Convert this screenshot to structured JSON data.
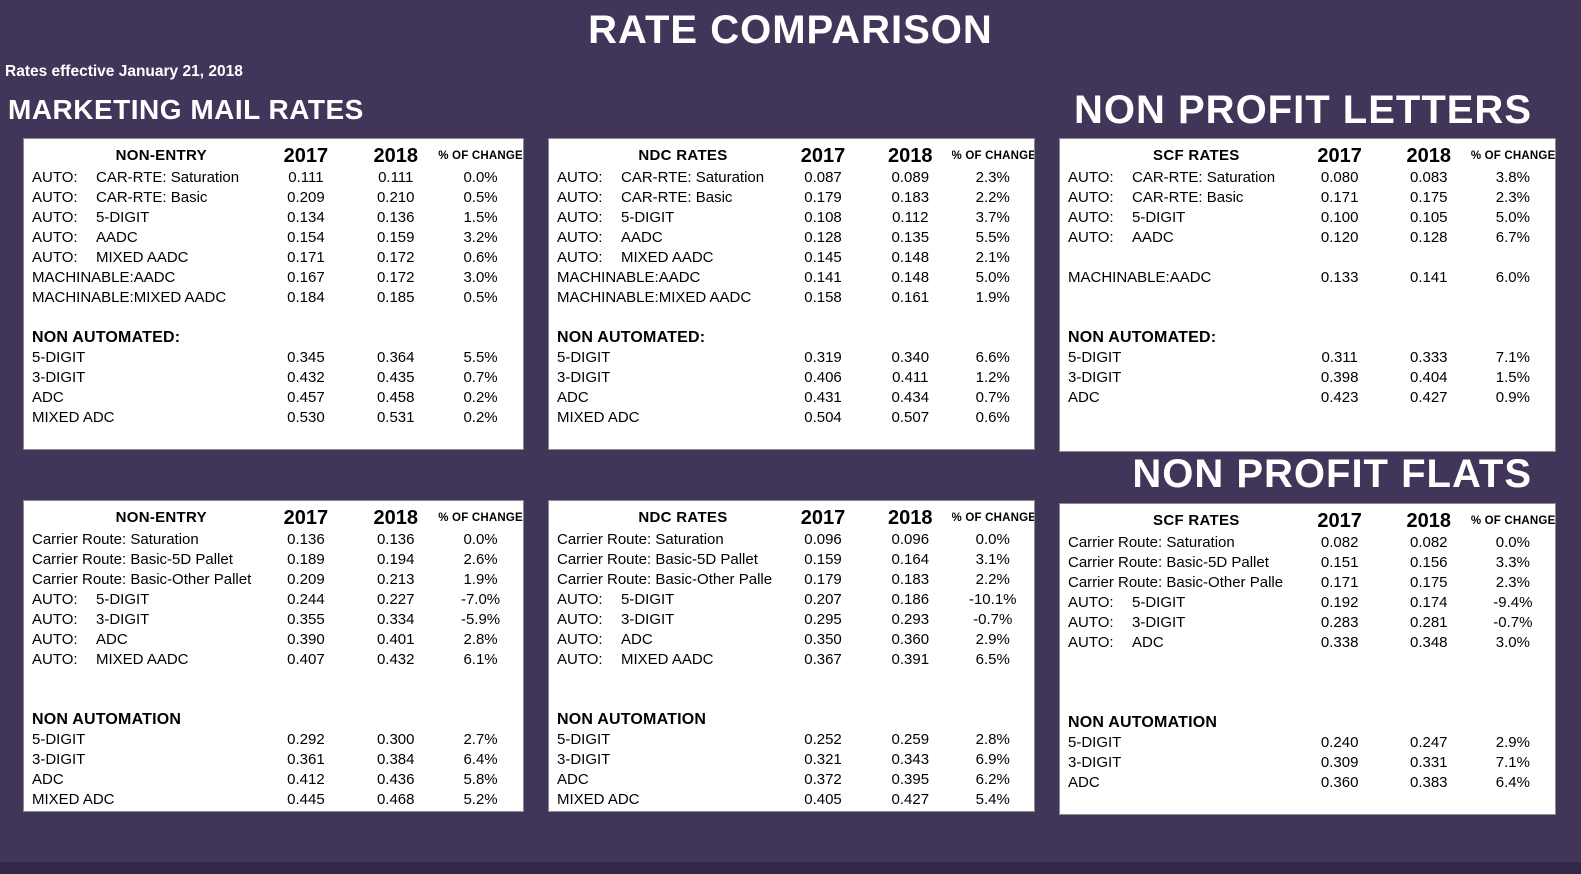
{
  "page": {
    "title": "RATE COMPARISON",
    "effective_date_note": "Rates effective January 21, 2018",
    "background_color": "#41355a",
    "panel_background": "#ffffff"
  },
  "section_headings": {
    "marketing_mail": "MARKETING MAIL RATES",
    "non_profit_letters": "NON PROFIT LETTERS",
    "non_profit_flats": "NON PROFIT FLATS"
  },
  "columns": {
    "c2017": "2017",
    "c2018": "2018",
    "change": "% OF CHANGE"
  },
  "panels": [
    {
      "name": "marketing-mail-letters-non-entry",
      "title": "NON-ENTRY",
      "rows": [
        {
          "prefix": "AUTO:",
          "label": "CAR-RTE: Saturation",
          "y2017": "0.111",
          "y2018": "0.111",
          "change": "0.0%"
        },
        {
          "prefix": "AUTO:",
          "label": "CAR-RTE: Basic",
          "y2017": "0.209",
          "y2018": "0.210",
          "change": "0.5%"
        },
        {
          "prefix": "AUTO:",
          "label": "5-DIGIT",
          "y2017": "0.134",
          "y2018": "0.136",
          "change": "1.5%"
        },
        {
          "prefix": "AUTO:",
          "label": "AADC",
          "y2017": "0.154",
          "y2018": "0.159",
          "change": "3.2%"
        },
        {
          "prefix": "AUTO:",
          "label": "MIXED AADC",
          "y2017": "0.171",
          "y2018": "0.172",
          "change": "0.6%"
        },
        {
          "prefix": "MACHINABLE:",
          "label": "AADC",
          "y2017": "0.167",
          "y2018": "0.172",
          "change": "3.0%"
        },
        {
          "prefix": "MACHINABLE:",
          "label": "MIXED AADC",
          "y2017": "0.184",
          "y2018": "0.185",
          "change": "0.5%"
        },
        {
          "type": "blank"
        },
        {
          "type": "section",
          "label": "NON AUTOMATED:"
        },
        {
          "label": "5-DIGIT",
          "y2017": "0.345",
          "y2018": "0.364",
          "change": "5.5%"
        },
        {
          "label": "3-DIGIT",
          "y2017": "0.432",
          "y2018": "0.435",
          "change": "0.7%"
        },
        {
          "label": "ADC",
          "y2017": "0.457",
          "y2018": "0.458",
          "change": "0.2%"
        },
        {
          "label": "MIXED ADC",
          "y2017": "0.530",
          "y2018": "0.531",
          "change": "0.2%"
        }
      ]
    },
    {
      "name": "marketing-mail-letters-ndc",
      "title": "NDC RATES",
      "rows": [
        {
          "prefix": "AUTO:",
          "label": "CAR-RTE: Saturation",
          "y2017": "0.087",
          "y2018": "0.089",
          "change": "2.3%"
        },
        {
          "prefix": "AUTO:",
          "label": "CAR-RTE: Basic",
          "y2017": "0.179",
          "y2018": "0.183",
          "change": "2.2%"
        },
        {
          "prefix": "AUTO:",
          "label": "5-DIGIT",
          "y2017": "0.108",
          "y2018": "0.112",
          "change": "3.7%"
        },
        {
          "prefix": "AUTO:",
          "label": "AADC",
          "y2017": "0.128",
          "y2018": "0.135",
          "change": "5.5%"
        },
        {
          "prefix": "AUTO:",
          "label": "MIXED AADC",
          "y2017": "0.145",
          "y2018": "0.148",
          "change": "2.1%"
        },
        {
          "prefix": "MACHINABLE:",
          "label": "AADC",
          "y2017": "0.141",
          "y2018": "0.148",
          "change": "5.0%"
        },
        {
          "prefix": "MACHINABLE:",
          "label": "MIXED AADC",
          "y2017": "0.158",
          "y2018": "0.161",
          "change": "1.9%"
        },
        {
          "type": "blank"
        },
        {
          "type": "section",
          "label": "NON AUTOMATED:"
        },
        {
          "label": "5-DIGIT",
          "y2017": "0.319",
          "y2018": "0.340",
          "change": "6.6%"
        },
        {
          "label": "3-DIGIT",
          "y2017": "0.406",
          "y2018": "0.411",
          "change": "1.2%"
        },
        {
          "label": "ADC",
          "y2017": "0.431",
          "y2018": "0.434",
          "change": "0.7%"
        },
        {
          "label": "MIXED ADC",
          "y2017": "0.504",
          "y2018": "0.507",
          "change": "0.6%"
        }
      ]
    },
    {
      "name": "non-profit-letters-scf",
      "title": "SCF RATES",
      "rows": [
        {
          "prefix": "AUTO:",
          "label": "CAR-RTE: Saturation",
          "y2017": "0.080",
          "y2018": "0.083",
          "change": "3.8%"
        },
        {
          "prefix": "AUTO:",
          "label": "CAR-RTE: Basic",
          "y2017": "0.171",
          "y2018": "0.175",
          "change": "2.3%"
        },
        {
          "prefix": "AUTO:",
          "label": "5-DIGIT",
          "y2017": "0.100",
          "y2018": "0.105",
          "change": "5.0%"
        },
        {
          "prefix": "AUTO:",
          "label": "AADC",
          "y2017": "0.120",
          "y2018": "0.128",
          "change": "6.7%"
        },
        {
          "type": "blank"
        },
        {
          "prefix": "MACHINABLE:",
          "label": "AADC",
          "y2017": "0.133",
          "y2018": "0.141",
          "change": "6.0%"
        },
        {
          "type": "blank"
        },
        {
          "type": "blank"
        },
        {
          "type": "section",
          "label": "NON AUTOMATED:"
        },
        {
          "label": "5-DIGIT",
          "y2017": "0.311",
          "y2018": "0.333",
          "change": "7.1%"
        },
        {
          "label": "3-DIGIT",
          "y2017": "0.398",
          "y2018": "0.404",
          "change": "1.5%"
        },
        {
          "label": "ADC",
          "y2017": "0.423",
          "y2018": "0.427",
          "change": "0.9%"
        }
      ]
    },
    {
      "name": "marketing-mail-flats-non-entry",
      "title": "NON-ENTRY",
      "rows": [
        {
          "label": "Carrier Route: Saturation",
          "y2017": "0.136",
          "y2018": "0.136",
          "change": "0.0%"
        },
        {
          "label": "Carrier Route: Basic-5D Pallet",
          "y2017": "0.189",
          "y2018": "0.194",
          "change": "2.6%"
        },
        {
          "label": "Carrier Route: Basic-Other Pallet",
          "y2017": "0.209",
          "y2018": "0.213",
          "change": "1.9%"
        },
        {
          "prefix": "AUTO:",
          "label": "5-DIGIT",
          "y2017": "0.244",
          "y2018": "0.227",
          "change": "-7.0%"
        },
        {
          "prefix": "AUTO:",
          "label": "3-DIGIT",
          "y2017": "0.355",
          "y2018": "0.334",
          "change": "-5.9%"
        },
        {
          "prefix": "AUTO:",
          "label": "ADC",
          "y2017": "0.390",
          "y2018": "0.401",
          "change": "2.8%"
        },
        {
          "prefix": "AUTO:",
          "label": "MIXED AADC",
          "y2017": "0.407",
          "y2018": "0.432",
          "change": "6.1%"
        },
        {
          "type": "blank"
        },
        {
          "type": "blank"
        },
        {
          "type": "section",
          "label": "NON AUTOMATION"
        },
        {
          "label": "5-DIGIT",
          "y2017": "0.292",
          "y2018": "0.300",
          "change": "2.7%"
        },
        {
          "label": "3-DIGIT",
          "y2017": "0.361",
          "y2018": "0.384",
          "change": "6.4%"
        },
        {
          "label": "ADC",
          "y2017": "0.412",
          "y2018": "0.436",
          "change": "5.8%"
        },
        {
          "label": "MIXED ADC",
          "y2017": "0.445",
          "y2018": "0.468",
          "change": "5.2%"
        }
      ]
    },
    {
      "name": "marketing-mail-flats-ndc",
      "title": "NDC RATES",
      "rows": [
        {
          "label": "Carrier Route: Saturation",
          "y2017": "0.096",
          "y2018": "0.096",
          "change": "0.0%"
        },
        {
          "label": "Carrier Route: Basic-5D Pallet",
          "y2017": "0.159",
          "y2018": "0.164",
          "change": "3.1%"
        },
        {
          "label": "Carrier Route: Basic-Other Palle",
          "y2017": "0.179",
          "y2018": "0.183",
          "change": "2.2%"
        },
        {
          "prefix": "AUTO:",
          "label": "5-DIGIT",
          "y2017": "0.207",
          "y2018": "0.186",
          "change": "-10.1%"
        },
        {
          "prefix": "AUTO:",
          "label": "3-DIGIT",
          "y2017": "0.295",
          "y2018": "0.293",
          "change": "-0.7%"
        },
        {
          "prefix": "AUTO:",
          "label": "ADC",
          "y2017": "0.350",
          "y2018": "0.360",
          "change": "2.9%"
        },
        {
          "prefix": "AUTO:",
          "label": "MIXED AADC",
          "y2017": "0.367",
          "y2018": "0.391",
          "change": "6.5%"
        },
        {
          "type": "blank"
        },
        {
          "type": "blank"
        },
        {
          "type": "section",
          "label": "NON AUTOMATION"
        },
        {
          "label": "5-DIGIT",
          "y2017": "0.252",
          "y2018": "0.259",
          "change": "2.8%"
        },
        {
          "label": "3-DIGIT",
          "y2017": "0.321",
          "y2018": "0.343",
          "change": "6.9%"
        },
        {
          "label": "ADC",
          "y2017": "0.372",
          "y2018": "0.395",
          "change": "6.2%"
        },
        {
          "label": "MIXED ADC",
          "y2017": "0.405",
          "y2018": "0.427",
          "change": "5.4%"
        }
      ]
    },
    {
      "name": "non-profit-flats-scf",
      "title": "SCF RATES",
      "rows": [
        {
          "label": "Carrier Route: Saturation",
          "y2017": "0.082",
          "y2018": "0.082",
          "change": "0.0%"
        },
        {
          "label": "Carrier Route: Basic-5D Pallet",
          "y2017": "0.151",
          "y2018": "0.156",
          "change": "3.3%"
        },
        {
          "label": "Carrier Route: Basic-Other Palle",
          "y2017": "0.171",
          "y2018": "0.175",
          "change": "2.3%"
        },
        {
          "prefix": "AUTO:",
          "label": "5-DIGIT",
          "y2017": "0.192",
          "y2018": "0.174",
          "change": "-9.4%"
        },
        {
          "prefix": "AUTO:",
          "label": "3-DIGIT",
          "y2017": "0.283",
          "y2018": "0.281",
          "change": "-0.7%"
        },
        {
          "prefix": "AUTO:",
          "label": "ADC",
          "y2017": "0.338",
          "y2018": "0.348",
          "change": "3.0%"
        },
        {
          "type": "blank"
        },
        {
          "type": "blank"
        },
        {
          "type": "blank"
        },
        {
          "type": "section",
          "label": "NON AUTOMATION"
        },
        {
          "label": "5-DIGIT",
          "y2017": "0.240",
          "y2018": "0.247",
          "change": "2.9%"
        },
        {
          "label": "3-DIGIT",
          "y2017": "0.309",
          "y2018": "0.331",
          "change": "7.1%"
        },
        {
          "label": "ADC",
          "y2017": "0.360",
          "y2018": "0.383",
          "change": "6.4%"
        }
      ]
    }
  ]
}
